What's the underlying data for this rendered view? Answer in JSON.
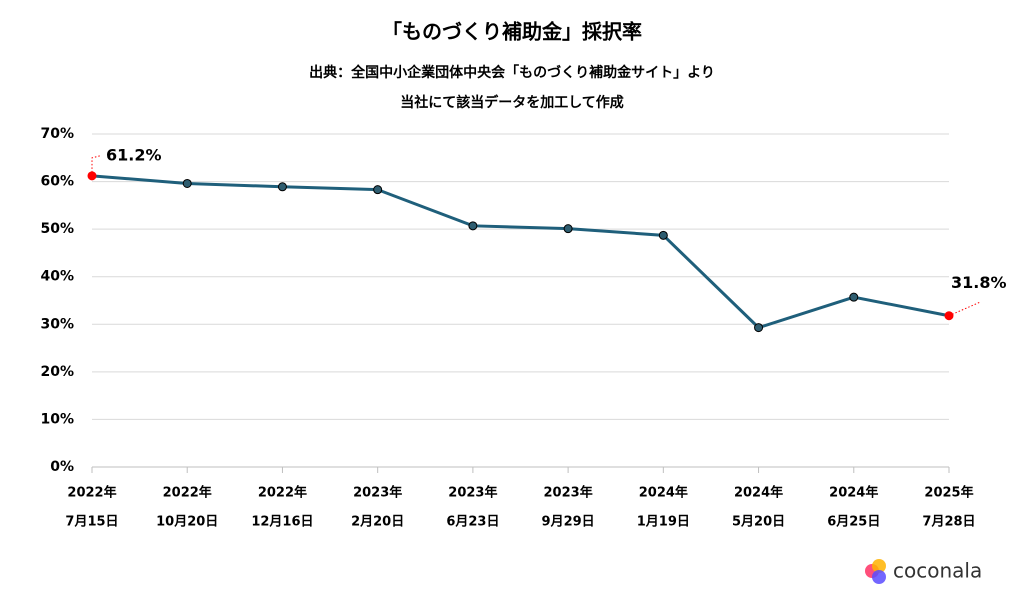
{
  "chart_data": {
    "type": "line",
    "title": "「ものづくり補助金」採択率",
    "subtitle": [
      "出典：全国中小企業団体中央会「ものづくり補助金サイト」より",
      "当社にて該当データを加工して作成"
    ],
    "categories": [
      [
        "2022年",
        "7月15日"
      ],
      [
        "2022年",
        "10月20日"
      ],
      [
        "2022年",
        "12月16日"
      ],
      [
        "2023年",
        "2月20日"
      ],
      [
        "2023年",
        "6月23日"
      ],
      [
        "2023年",
        "9月29日"
      ],
      [
        "2024年",
        "1月19日"
      ],
      [
        "2024年",
        "5月20日"
      ],
      [
        "2024年",
        "6月25日"
      ],
      [
        "2025年",
        "7月28日"
      ]
    ],
    "series": [
      {
        "color": "#1f5f7b",
        "marker_color": "#2e5d70",
        "highlight_color": "#ff0000",
        "values": [
          61.2,
          59.6,
          58.9,
          58.3,
          50.7,
          50.1,
          48.7,
          29.3,
          35.7,
          31.8
        ],
        "value_labels": [
          "61.2%",
          null,
          null,
          null,
          null,
          null,
          null,
          null,
          null,
          "31.8%"
        ]
      }
    ],
    "ylim": [
      0,
      70
    ],
    "yticks": [
      {
        "value": 0,
        "label": "0%"
      },
      {
        "value": 10,
        "label": "10%"
      },
      {
        "value": 20,
        "label": "20%"
      },
      {
        "value": 30,
        "label": "30%"
      },
      {
        "value": 40,
        "label": "40%"
      },
      {
        "value": 50,
        "label": "50%"
      },
      {
        "value": 60,
        "label": "60%"
      },
      {
        "value": 70,
        "label": "70%"
      }
    ],
    "grid": true
  },
  "logo": "coconala"
}
